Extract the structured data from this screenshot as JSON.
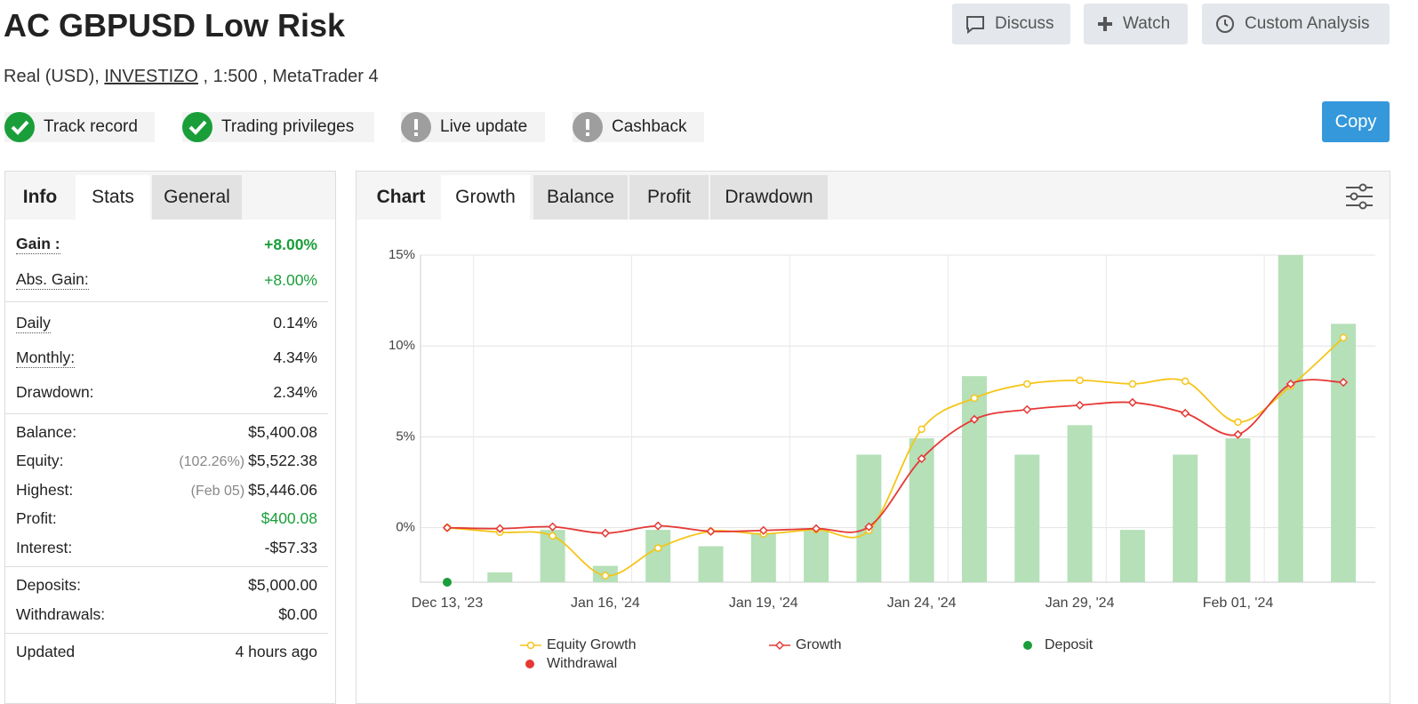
{
  "header": {
    "title": "AC GBPUSD Low Risk",
    "subtitle_prefix": "Real (USD),",
    "broker": "INVESTIZO",
    "subtitle_suffix": ", 1:500 , MetaTrader 4",
    "buttons": [
      "Discuss",
      "Watch",
      "Custom Analysis"
    ],
    "copy": "Copy"
  },
  "badges": [
    {
      "label": "Track record",
      "status": "ok"
    },
    {
      "label": "Trading privileges",
      "status": "ok"
    },
    {
      "label": "Live update",
      "status": "pending"
    },
    {
      "label": "Cashback",
      "status": "pending"
    }
  ],
  "left_tabs": {
    "items": [
      "Info",
      "Stats",
      "General"
    ],
    "active": 1
  },
  "stats": [
    [
      {
        "label": "Gain :",
        "value": "+8.00%",
        "color": "#1a9e3a",
        "hint": true,
        "bold": true
      },
      {
        "label": "Abs. Gain:",
        "value": "+8.00%",
        "color": "#1a9e3a",
        "hint": true
      }
    ],
    [
      {
        "label": "Daily",
        "value": "0.14%",
        "hint": true
      },
      {
        "label": "Monthly:",
        "value": "4.34%",
        "hint": true
      },
      {
        "label": "Drawdown:",
        "value": "2.34%"
      }
    ],
    [
      {
        "label": "Balance:",
        "value": "$5,400.08"
      },
      {
        "label": "Equity:",
        "note": "(102.26%)",
        "value": "$5,522.38"
      },
      {
        "label": "Highest:",
        "note": "(Feb 05)",
        "value": "$5,446.06"
      },
      {
        "label": "Profit:",
        "value": "$400.08",
        "color": "#1a9e3a"
      },
      {
        "label": "Interest:",
        "value": "-$57.33"
      }
    ],
    [
      {
        "label": "Deposits:",
        "value": "$5,000.00"
      },
      {
        "label": "Withdrawals:",
        "value": "$0.00"
      }
    ],
    [
      {
        "label": "Updated",
        "value": "4 hours ago"
      }
    ]
  ],
  "chart_tabs": {
    "label": "Chart",
    "items": [
      "Growth",
      "Balance",
      "Profit",
      "Drawdown"
    ],
    "active": 0
  },
  "chart_data": {
    "type": "line",
    "categories": [
      "Dec 13, '23",
      null,
      null,
      "Jan 16, '24",
      null,
      null,
      "Jan 19, '24",
      null,
      null,
      "Jan 24, '24",
      null,
      null,
      "Jan 29, '24",
      null,
      null,
      "Feb 01, '24",
      null,
      null
    ],
    "ylim": [
      -3,
      15
    ],
    "yticks": [
      {
        "value": 0,
        "label": "0%"
      },
      {
        "value": 5,
        "label": "5%"
      },
      {
        "value": 10,
        "label": "10%"
      },
      {
        "value": 15,
        "label": "15%"
      }
    ],
    "y2lim": [
      0,
      10
    ],
    "grid": true,
    "series": [
      {
        "type": "bar",
        "axis": "y2",
        "color": "#b5e0b8",
        "values": [
          null,
          0.3,
          1.6,
          0.5,
          1.6,
          1.1,
          1.5,
          1.6,
          3.9,
          4.4,
          6.3,
          3.9,
          4.8,
          1.6,
          3.9,
          4.4,
          10,
          7.9
        ]
      },
      {
        "name": "Equity Growth",
        "type": "line",
        "marker": "circle",
        "color": "#f5c518",
        "values": [
          0,
          -0.25,
          -0.45,
          -2.64,
          -1.12,
          -0.2,
          -0.34,
          -0.1,
          -0.15,
          5.42,
          7.13,
          7.91,
          8.11,
          7.91,
          8.06,
          5.81,
          7.8,
          10.46
        ]
      },
      {
        "name": "Growth",
        "type": "line",
        "marker": "diamond",
        "color": "#e53935",
        "values": [
          0,
          -0.05,
          0.05,
          -0.3,
          0.1,
          -0.2,
          -0.15,
          -0.05,
          0.05,
          3.8,
          5.96,
          6.5,
          6.74,
          6.89,
          6.3,
          5.13,
          7.91,
          8.0
        ]
      },
      {
        "name": "Deposit",
        "type": "scatter",
        "axis": "y2",
        "color": "#1a9e3a",
        "values": [
          0,
          null,
          null,
          null,
          null,
          null,
          null,
          null,
          null,
          null,
          null,
          null,
          null,
          null,
          null,
          null,
          null,
          null
        ]
      },
      {
        "name": "Withdrawal",
        "type": "scatter",
        "axis": "y2",
        "color": "#e53935",
        "values": [
          null,
          null,
          null,
          null,
          null,
          null,
          null,
          null,
          null,
          null,
          null,
          null,
          null,
          null,
          null,
          null,
          null,
          null
        ]
      }
    ]
  }
}
